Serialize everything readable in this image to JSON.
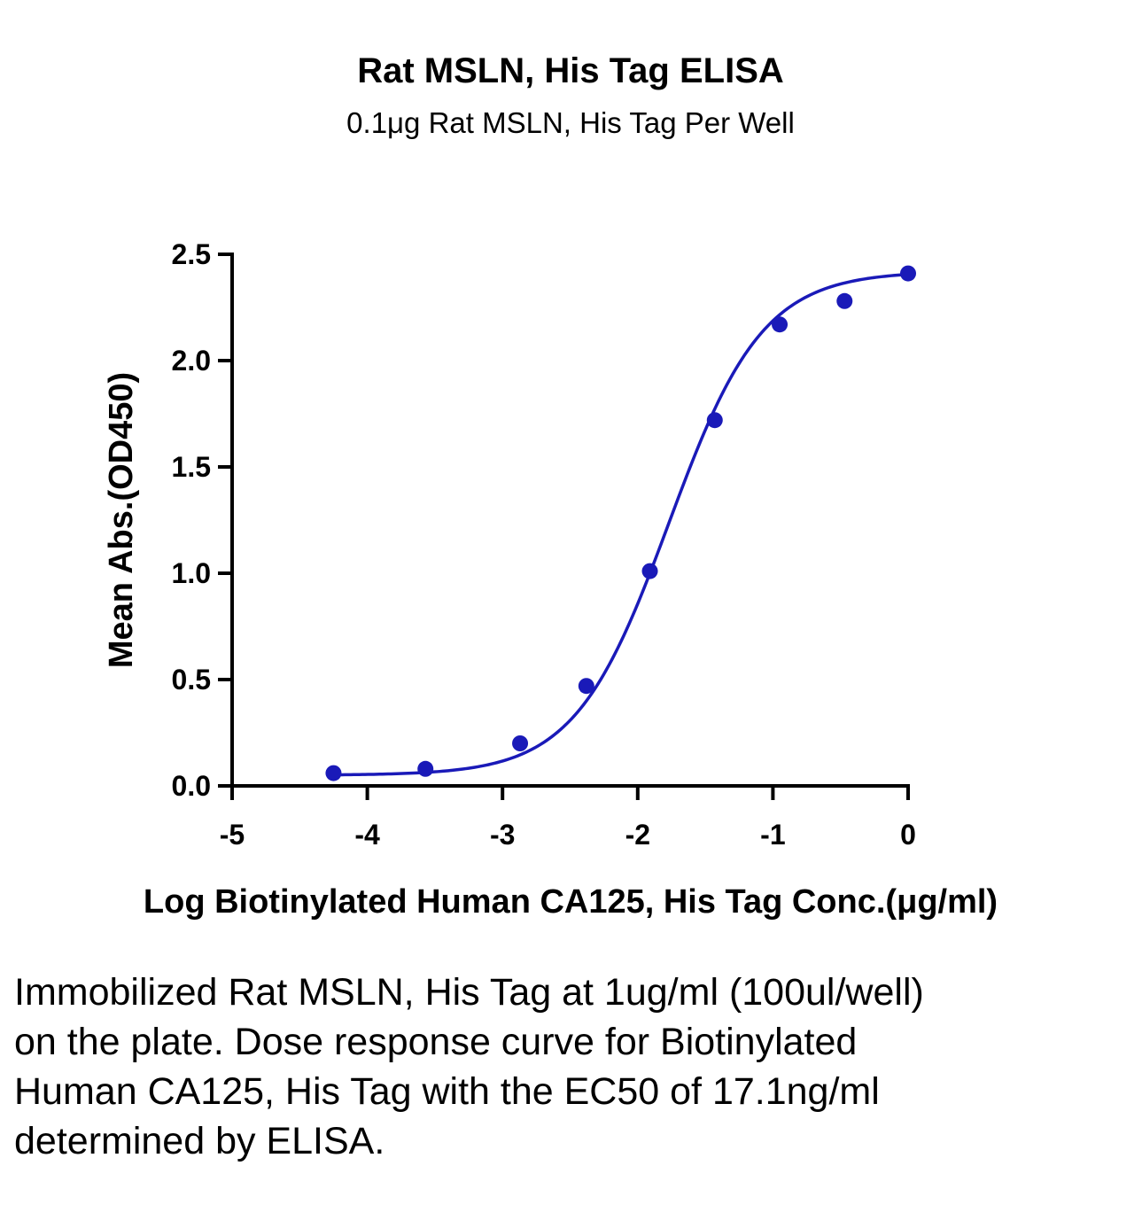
{
  "chart_data": {
    "type": "scatter",
    "title": "Rat MSLN, His Tag ELISA",
    "subtitle": "0.1μg Rat MSLN, His Tag Per Well",
    "xlabel": "Log Biotinylated Human CA125, His Tag Conc.(μg/ml)",
    "ylabel": "Mean Abs.(OD450)",
    "xlim": [
      -5,
      0
    ],
    "ylim": [
      0,
      2.5
    ],
    "x_ticks": [
      -5,
      -4,
      -3,
      -2,
      -1,
      0
    ],
    "x_tick_labels": [
      "-5",
      "-4",
      "-3",
      "-2",
      "-1",
      "0"
    ],
    "y_ticks": [
      0,
      0.5,
      1,
      1.5,
      2,
      2.5
    ],
    "y_tick_labels": [
      "0.0",
      "0.5",
      "1.0",
      "1.5",
      "2.0",
      "2.5"
    ],
    "grid": false,
    "legend": "none",
    "series": [
      {
        "x": [
          -4.25,
          -3.57,
          -2.87,
          -2.38,
          -1.91,
          -1.43,
          -0.95,
          -0.47,
          0.0
        ],
        "y": [
          0.06,
          0.08,
          0.2,
          0.47,
          1.01,
          1.72,
          2.17,
          2.28,
          2.41
        ],
        "color": "#1a1ab8",
        "marker": "circle"
      }
    ],
    "fit": {
      "type": "4PL sigmoid",
      "bottom": 0.05,
      "top": 2.42,
      "log_ec50": -1.77,
      "hill_slope": 1.25,
      "x_range": [
        -4.25,
        0.0
      ],
      "color": "#1a1ab8"
    }
  },
  "caption": "Immobilized Rat MSLN, His Tag at 1ug/ml (100ul/well) on the plate. Dose response curve for Biotinylated Human CA125, His Tag with the EC50 of 17.1ng/ml determined by ELISA."
}
